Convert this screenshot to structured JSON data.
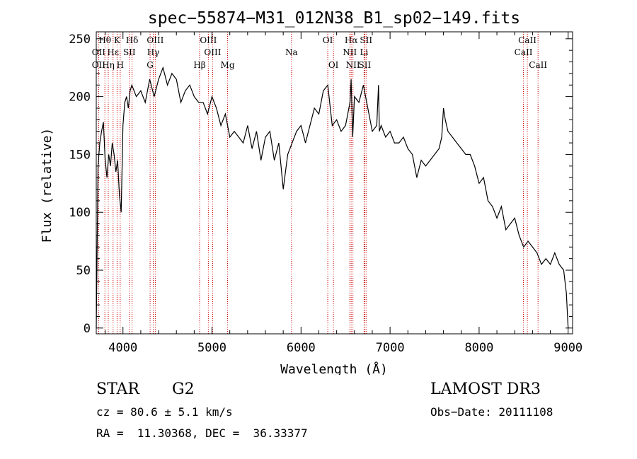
{
  "colors": {
    "axis": "#000000",
    "spectrum": "#000000",
    "line_marker": "#cc0000",
    "background": "#ffffff"
  },
  "chart_data": {
    "type": "line",
    "title": "spec−55874−M31_012N38_B1_sp02−149.fits",
    "xlabel": "Wavelength (Å)",
    "ylabel": "Flux (relative)",
    "xlim": [
      3700,
      9050
    ],
    "ylim": [
      -5,
      256
    ],
    "xticks": [
      4000,
      5000,
      6000,
      7000,
      8000,
      9000
    ],
    "yticks": [
      0,
      50,
      100,
      150,
      200,
      250
    ],
    "grid": false,
    "series": [
      {
        "x": [
          3700,
          3720,
          3740,
          3760,
          3780,
          3800,
          3820,
          3840,
          3860,
          3880,
          3900,
          3920,
          3940,
          3960,
          3980,
          4000,
          4020,
          4040,
          4060,
          4080,
          4100,
          4150,
          4200,
          4250,
          4300,
          4350,
          4400,
          4450,
          4500,
          4550,
          4600,
          4650,
          4700,
          4750,
          4800,
          4850,
          4900,
          4950,
          5000,
          5050,
          5100,
          5150,
          5200,
          5250,
          5300,
          5350,
          5400,
          5450,
          5500,
          5550,
          5600,
          5650,
          5700,
          5750,
          5800,
          5850,
          5900,
          5950,
          6000,
          6050,
          6100,
          6150,
          6200,
          6250,
          6300,
          6350,
          6400,
          6450,
          6500,
          6550,
          6563,
          6580,
          6600,
          6650,
          6700,
          6750,
          6800,
          6850,
          6870,
          6880,
          6900,
          6950,
          7000,
          7050,
          7100,
          7150,
          7200,
          7250,
          7300,
          7350,
          7400,
          7450,
          7500,
          7550,
          7580,
          7600,
          7620,
          7650,
          7700,
          7750,
          7800,
          7850,
          7900,
          7950,
          8000,
          8050,
          8100,
          8150,
          8200,
          8250,
          8300,
          8350,
          8400,
          8450,
          8500,
          8550,
          8600,
          8650,
          8700,
          8750,
          8800,
          8850,
          8900,
          8950,
          8980,
          9000
        ],
        "y": [
          0,
          140,
          160,
          170,
          178,
          145,
          130,
          150,
          140,
          160,
          150,
          135,
          145,
          115,
          100,
          175,
          195,
          200,
          190,
          205,
          210,
          200,
          205,
          195,
          215,
          200,
          215,
          225,
          210,
          220,
          215,
          195,
          205,
          210,
          200,
          195,
          195,
          185,
          200,
          190,
          175,
          185,
          165,
          170,
          165,
          160,
          175,
          155,
          170,
          145,
          165,
          170,
          145,
          160,
          120,
          150,
          160,
          170,
          175,
          160,
          175,
          190,
          185,
          205,
          210,
          175,
          180,
          170,
          175,
          195,
          215,
          165,
          200,
          195,
          210,
          190,
          170,
          175,
          210,
          170,
          175,
          165,
          170,
          160,
          160,
          165,
          155,
          150,
          130,
          145,
          140,
          145,
          150,
          155,
          165,
          190,
          180,
          170,
          165,
          160,
          155,
          150,
          150,
          140,
          125,
          130,
          110,
          105,
          95,
          105,
          85,
          90,
          95,
          80,
          70,
          75,
          70,
          65,
          55,
          60,
          55,
          65,
          55,
          50,
          30,
          0
        ]
      }
    ],
    "line_markers": [
      {
        "label": "Hθ",
        "x": 3797,
        "row": 0
      },
      {
        "label": "OII",
        "x": 3727,
        "row": 1
      },
      {
        "label": "OII",
        "x": 3727,
        "row": 2
      },
      {
        "label": "Hε",
        "x": 3889,
        "row": 1
      },
      {
        "label": "Hη",
        "x": 3835,
        "row": 2
      },
      {
        "label": "K",
        "x": 3934,
        "row": 0
      },
      {
        "label": "H",
        "x": 3969,
        "row": 2
      },
      {
        "label": "Hδ",
        "x": 4102,
        "row": 0
      },
      {
        "label": "SII",
        "x": 4072,
        "row": 1
      },
      {
        "label": "OIII",
        "x": 4363,
        "row": 0
      },
      {
        "label": "Hγ",
        "x": 4340,
        "row": 1
      },
      {
        "label": "G",
        "x": 4305,
        "row": 2
      },
      {
        "label": "OIII",
        "x": 4959,
        "row": 0
      },
      {
        "label": "OIII",
        "x": 5007,
        "row": 1
      },
      {
        "label": "Hβ",
        "x": 4861,
        "row": 2
      },
      {
        "label": "Mg",
        "x": 5175,
        "row": 2
      },
      {
        "label": "Na",
        "x": 5893,
        "row": 1
      },
      {
        "label": "OI",
        "x": 6300,
        "row": 0
      },
      {
        "label": "OI",
        "x": 6364,
        "row": 2
      },
      {
        "label": "Hα",
        "x": 6563,
        "row": 0
      },
      {
        "label": "NII",
        "x": 6548,
        "row": 1
      },
      {
        "label": "NII",
        "x": 6583,
        "row": 2
      },
      {
        "label": "SII",
        "x": 6731,
        "row": 0
      },
      {
        "label": "Li",
        "x": 6708,
        "row": 1
      },
      {
        "label": "SII",
        "x": 6716,
        "row": 2
      },
      {
        "label": "CaII",
        "x": 8542,
        "row": 0
      },
      {
        "label": "CaII",
        "x": 8498,
        "row": 1
      },
      {
        "label": "CaII",
        "x": 8662,
        "row": 2
      }
    ]
  },
  "info": {
    "class": "STAR",
    "subclass": "G2",
    "survey": "LAMOST DR3",
    "cz": "cz = 80.6 ± 5.1 km/s",
    "obs_date": "Obs−Date: 20111108",
    "radec": "RA =  11.30368, DEC =  36.33377"
  }
}
